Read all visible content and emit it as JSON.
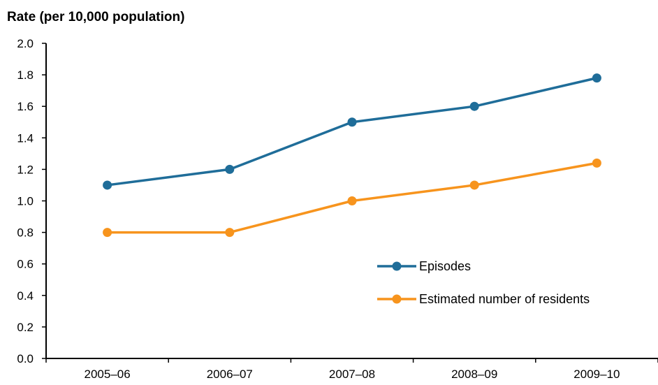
{
  "chart_data": {
    "type": "line",
    "title": "",
    "ylabel": "Rate (per 10,000 population)",
    "xlabel": "",
    "categories": [
      "2005–06",
      "2006–07",
      "2007–08",
      "2008–09",
      "2009–10"
    ],
    "ylim": [
      0,
      2.0
    ],
    "yticks": [
      "0.0",
      "0.2",
      "0.4",
      "0.6",
      "0.8",
      "1.0",
      "1.2",
      "1.4",
      "1.6",
      "1.8",
      "2.0"
    ],
    "grid": false,
    "legend_position": "right-center",
    "series": [
      {
        "name": "Episodes",
        "values": [
          1.1,
          1.2,
          1.5,
          1.6,
          1.78
        ],
        "color": "#1f6d99"
      },
      {
        "name": "Estimated number of residents",
        "values": [
          0.8,
          0.8,
          1.0,
          1.1,
          1.24
        ],
        "color": "#f7941d"
      }
    ]
  }
}
